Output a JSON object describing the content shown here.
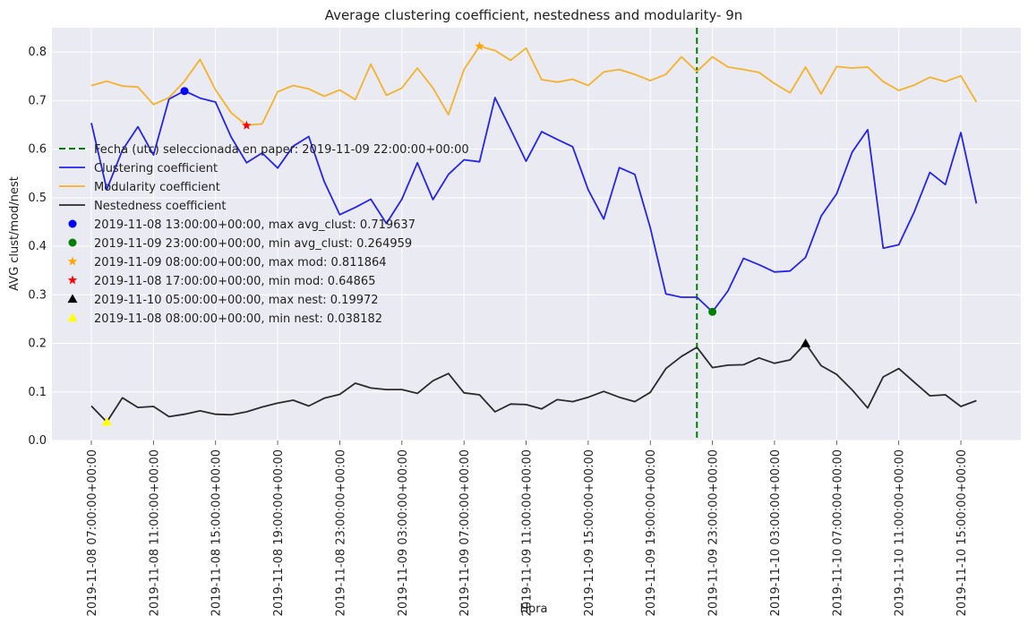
{
  "chart_data": {
    "type": "line",
    "title": "Average clustering coefficient, nestedness and modularity- 9n",
    "xlabel": "Hora",
    "ylabel": "AVG clust/mod/nest",
    "ylim": [
      0,
      0.85
    ],
    "y_ticks": [
      "0.0",
      "0.1",
      "0.2",
      "0.3",
      "0.4",
      "0.5",
      "0.6",
      "0.7",
      "0.8"
    ],
    "x_ticks": [
      "2019-11-08 07:00:00+00:00",
      "2019-11-08 11:00:00+00:00",
      "2019-11-08 15:00:00+00:00",
      "2019-11-08 19:00:00+00:00",
      "2019-11-08 23:00:00+00:00",
      "2019-11-09 03:00:00+00:00",
      "2019-11-09 07:00:00+00:00",
      "2019-11-09 11:00:00+00:00",
      "2019-11-09 15:00:00+00:00",
      "2019-11-09 19:00:00+00:00",
      "2019-11-09 23:00:00+00:00",
      "2019-11-10 03:00:00+00:00",
      "2019-11-10 07:00:00+00:00",
      "2019-11-10 11:00:00+00:00",
      "2019-11-10 15:00:00+00:00"
    ],
    "x_start": "2019-11-08 07:00:00+00:00",
    "x_step_hours": 1,
    "grid": true,
    "legend_position": "center-left",
    "vline": {
      "x": "2019-11-09 22:00:00+00:00",
      "label": "Fecha (utc) seleccionada en paper: 2019-11-09 22:00:00+00:00",
      "color": "#008000"
    },
    "series": [
      {
        "name": "Clustering coefficient",
        "color": "#2424ee",
        "values": [
          0.654,
          0.517,
          0.598,
          0.646,
          0.588,
          0.703,
          0.72,
          0.705,
          0.697,
          0.625,
          0.572,
          0.592,
          0.561,
          0.606,
          0.626,
          0.533,
          0.465,
          0.48,
          0.497,
          0.447,
          0.497,
          0.572,
          0.496,
          0.548,
          0.578,
          0.574,
          0.706,
          0.641,
          0.575,
          0.636,
          0.62,
          0.605,
          0.516,
          0.456,
          0.562,
          0.548,
          0.438,
          0.302,
          0.295,
          0.295,
          0.265,
          0.308,
          0.375,
          0.362,
          0.347,
          0.349,
          0.377,
          0.462,
          0.508,
          0.594,
          0.64,
          0.396,
          0.403,
          0.471,
          0.552,
          0.527,
          0.634,
          0.488
        ]
      },
      {
        "name": "Modularity coefficient",
        "color": "#f6b12a",
        "values": [
          0.731,
          0.74,
          0.73,
          0.728,
          0.692,
          0.706,
          0.74,
          0.785,
          0.722,
          0.675,
          0.649,
          0.652,
          0.718,
          0.731,
          0.724,
          0.709,
          0.722,
          0.702,
          0.775,
          0.711,
          0.726,
          0.767,
          0.726,
          0.671,
          0.764,
          0.812,
          0.803,
          0.783,
          0.808,
          0.743,
          0.738,
          0.744,
          0.731,
          0.759,
          0.764,
          0.754,
          0.741,
          0.754,
          0.79,
          0.76,
          0.79,
          0.769,
          0.764,
          0.758,
          0.735,
          0.716,
          0.769,
          0.714,
          0.77,
          0.767,
          0.769,
          0.739,
          0.721,
          0.732,
          0.748,
          0.739,
          0.751,
          0.697
        ]
      },
      {
        "name": "Nestedness coefficient",
        "color": "#2b2b2b",
        "values": [
          0.071,
          0.038,
          0.088,
          0.068,
          0.07,
          0.049,
          0.054,
          0.061,
          0.054,
          0.053,
          0.059,
          0.069,
          0.077,
          0.083,
          0.071,
          0.087,
          0.095,
          0.118,
          0.108,
          0.105,
          0.105,
          0.097,
          0.123,
          0.138,
          0.098,
          0.094,
          0.059,
          0.075,
          0.074,
          0.065,
          0.084,
          0.08,
          0.089,
          0.101,
          0.089,
          0.08,
          0.099,
          0.148,
          0.173,
          0.192,
          0.15,
          0.155,
          0.156,
          0.17,
          0.159,
          0.166,
          0.2,
          0.154,
          0.136,
          0.104,
          0.067,
          0.131,
          0.148,
          0.12,
          0.092,
          0.094,
          0.07,
          0.082
        ]
      }
    ],
    "markers": [
      {
        "label": "2019-11-08 13:00:00+00:00, max avg_clust: 0.719637",
        "x_index": 6,
        "y": 0.719637,
        "shape": "circle",
        "color": "#0000ff"
      },
      {
        "label": "2019-11-09 23:00:00+00:00, min avg_clust: 0.264959",
        "x_index": 40,
        "y": 0.264959,
        "shape": "circle",
        "color": "#008000"
      },
      {
        "label": "2019-11-09 08:00:00+00:00, max mod: 0.811864",
        "x_index": 25,
        "y": 0.811864,
        "shape": "star",
        "color": "#ffa500"
      },
      {
        "label": "2019-11-08 17:00:00+00:00, min mod: 0.64865",
        "x_index": 10,
        "y": 0.64865,
        "shape": "star",
        "color": "#ff0000"
      },
      {
        "label": "2019-11-10 05:00:00+00:00, max nest: 0.19972",
        "x_index": 46,
        "y": 0.19972,
        "shape": "triangle",
        "color": "#000000"
      },
      {
        "label": "2019-11-08 08:00:00+00:00, min nest: 0.038182",
        "x_index": 1,
        "y": 0.038182,
        "shape": "triangle",
        "color": "#ffff00"
      }
    ]
  }
}
